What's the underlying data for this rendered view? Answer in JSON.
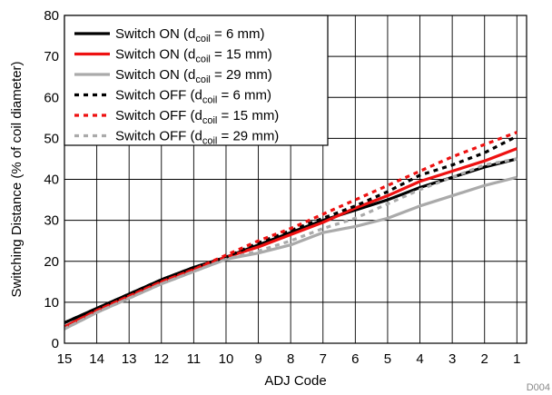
{
  "chart_data": {
    "type": "line",
    "title": "",
    "xlabel": "ADJ Code",
    "ylabel": "Switching Distance (% of coil diameter)",
    "figure_id": "D004",
    "x": [
      15,
      14,
      13,
      12,
      11,
      10,
      9,
      8,
      7,
      6,
      5,
      4,
      3,
      2,
      1
    ],
    "x_ticks": [
      "15",
      "14",
      "13",
      "12",
      "11",
      "10",
      "9",
      "8",
      "7",
      "6",
      "5",
      "4",
      "3",
      "2",
      "1"
    ],
    "xlim": [
      15,
      0.7
    ],
    "ylim": [
      0,
      80
    ],
    "y_ticks": [
      "0",
      "10",
      "20",
      "30",
      "40",
      "50",
      "60",
      "70",
      "80"
    ],
    "grid": true,
    "legend_position": "top-left",
    "series": [
      {
        "name_main": "Switch ON (d",
        "name_sub": "coil",
        "name_end": " = 6 mm)",
        "color": "#000000",
        "dash": "solid",
        "values": [
          5,
          8.5,
          12,
          15.5,
          18.5,
          21,
          24,
          27,
          30,
          32.5,
          35,
          38,
          40.5,
          43,
          45
        ]
      },
      {
        "name_main": "Switch ON (d",
        "name_sub": "coil",
        "name_end": " = 15 mm)",
        "color": "#ee1111",
        "dash": "solid",
        "values": [
          4,
          8,
          11.5,
          15,
          18,
          21,
          23.5,
          26.5,
          29.5,
          33,
          36,
          39.5,
          42,
          44.5,
          47.5
        ]
      },
      {
        "name_main": "Switch ON (d",
        "name_sub": "coil",
        "name_end": " = 29 mm)",
        "color": "#aaaaaa",
        "dash": "solid",
        "values": [
          3.5,
          7.5,
          11,
          14.5,
          17.5,
          20.5,
          22,
          24,
          27,
          28.5,
          30.5,
          33.5,
          36,
          38.5,
          40.5
        ]
      },
      {
        "name_main": "Switch OFF (d",
        "name_sub": "coil",
        "name_end": " = 6 mm)",
        "color": "#000000",
        "dash": "dotted",
        "values": [
          5,
          8.5,
          12,
          15.5,
          18.5,
          21,
          24.5,
          27.5,
          30.5,
          33.5,
          37,
          41,
          43.5,
          46.5,
          50.5
        ]
      },
      {
        "name_main": "Switch OFF (d",
        "name_sub": "coil",
        "name_end": " = 15 mm)",
        "color": "#ee1111",
        "dash": "dotted",
        "values": [
          4,
          8,
          11.5,
          15,
          18,
          21.5,
          25,
          28,
          31.5,
          35,
          38.5,
          42,
          45.5,
          48.5,
          51.5
        ]
      },
      {
        "name_main": "Switch OFF (d",
        "name_sub": "coil",
        "name_end": " = 29 mm)",
        "color": "#aaaaaa",
        "dash": "dotted",
        "values": [
          3.5,
          7.5,
          11,
          14.5,
          17.5,
          20.5,
          22.5,
          25,
          28,
          30.5,
          34,
          37.5,
          40.5,
          43.5,
          45
        ]
      }
    ]
  }
}
